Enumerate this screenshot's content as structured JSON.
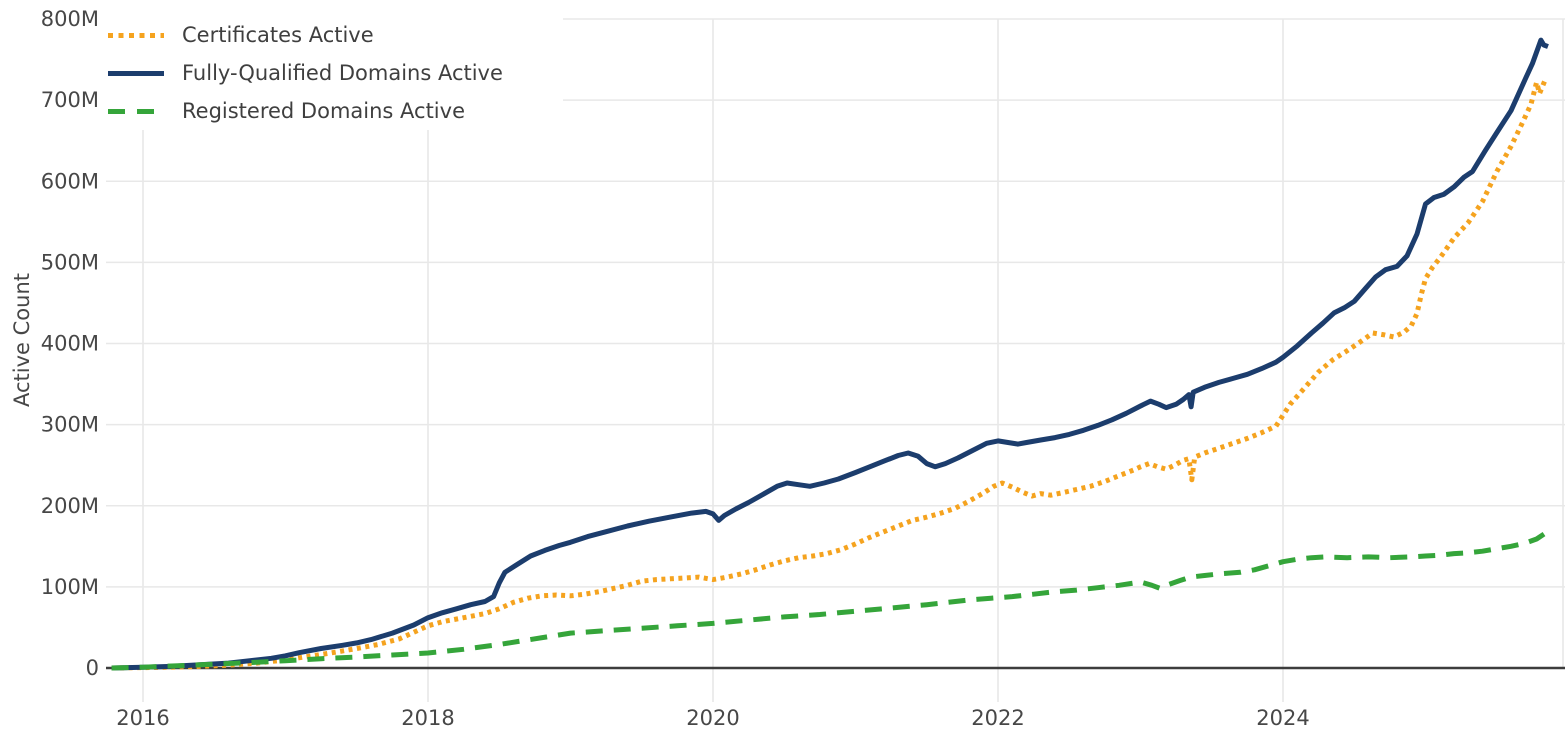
{
  "chart_data": {
    "type": "line",
    "title": "",
    "xlabel": "",
    "ylabel": "Active Count",
    "unit": "millions",
    "grid": true,
    "legend_position": "top-left",
    "x_range_years": [
      2015.76,
      2025.96
    ],
    "ylim": [
      0,
      800
    ],
    "x_tick_labels": [
      "2016",
      "2018",
      "2020",
      "2022",
      "2024"
    ],
    "x_tick_years": [
      2016,
      2018,
      2020,
      2022,
      2024
    ],
    "y_tick_labels": [
      "0",
      "100M",
      "200M",
      "300M",
      "400M",
      "500M",
      "600M",
      "700M",
      "800M"
    ],
    "y_tick_values": [
      0,
      100,
      200,
      300,
      400,
      500,
      600,
      700,
      800
    ],
    "colors": {
      "certificates": "#f5a31f",
      "fqdn": "#1c3d6d",
      "registered": "#35a53a",
      "grid": "#e8e8e8",
      "axis_line": "#3d3d3d",
      "tick_text": "#474747",
      "legend_text": "#3f3f3f"
    },
    "series": [
      {
        "name": "Certificates Active",
        "style": "dotted",
        "color": "#f5a31f",
        "points": [
          [
            2015.78,
            0
          ],
          [
            2016.0,
            0.5
          ],
          [
            2016.2,
            1
          ],
          [
            2016.4,
            2
          ],
          [
            2016.6,
            3.5
          ],
          [
            2016.8,
            6
          ],
          [
            2017.0,
            10
          ],
          [
            2017.15,
            14
          ],
          [
            2017.3,
            18
          ],
          [
            2017.5,
            24
          ],
          [
            2017.65,
            29
          ],
          [
            2017.8,
            36
          ],
          [
            2017.9,
            44
          ],
          [
            2018.0,
            52
          ],
          [
            2018.1,
            57
          ],
          [
            2018.25,
            62
          ],
          [
            2018.4,
            67
          ],
          [
            2018.5,
            73
          ],
          [
            2018.6,
            81
          ],
          [
            2018.7,
            86
          ],
          [
            2018.8,
            89
          ],
          [
            2018.9,
            90
          ],
          [
            2019.0,
            89
          ],
          [
            2019.1,
            91
          ],
          [
            2019.2,
            94
          ],
          [
            2019.3,
            98
          ],
          [
            2019.4,
            102
          ],
          [
            2019.5,
            107
          ],
          [
            2019.6,
            109
          ],
          [
            2019.7,
            110
          ],
          [
            2019.8,
            111
          ],
          [
            2019.9,
            112
          ],
          [
            2020.0,
            109
          ],
          [
            2020.1,
            112
          ],
          [
            2020.2,
            116
          ],
          [
            2020.3,
            121
          ],
          [
            2020.4,
            127
          ],
          [
            2020.5,
            132
          ],
          [
            2020.6,
            136
          ],
          [
            2020.7,
            138
          ],
          [
            2020.8,
            141
          ],
          [
            2020.9,
            146
          ],
          [
            2021.0,
            153
          ],
          [
            2021.1,
            161
          ],
          [
            2021.2,
            168
          ],
          [
            2021.3,
            175
          ],
          [
            2021.4,
            182
          ],
          [
            2021.5,
            186
          ],
          [
            2021.6,
            191
          ],
          [
            2021.7,
            197
          ],
          [
            2021.8,
            206
          ],
          [
            2021.9,
            216
          ],
          [
            2021.97,
            224
          ],
          [
            2022.03,
            228
          ],
          [
            2022.1,
            223
          ],
          [
            2022.17,
            217
          ],
          [
            2022.24,
            212
          ],
          [
            2022.3,
            215
          ],
          [
            2022.37,
            213
          ],
          [
            2022.45,
            216
          ],
          [
            2022.55,
            220
          ],
          [
            2022.65,
            224
          ],
          [
            2022.75,
            230
          ],
          [
            2022.85,
            237
          ],
          [
            2022.95,
            244
          ],
          [
            2023.0,
            248
          ],
          [
            2023.06,
            252
          ],
          [
            2023.12,
            248
          ],
          [
            2023.18,
            245
          ],
          [
            2023.25,
            251
          ],
          [
            2023.3,
            256
          ],
          [
            2023.34,
            258
          ],
          [
            2023.36,
            232
          ],
          [
            2023.38,
            260
          ],
          [
            2023.45,
            265
          ],
          [
            2023.55,
            271
          ],
          [
            2023.65,
            277
          ],
          [
            2023.75,
            283
          ],
          [
            2023.85,
            290
          ],
          [
            2023.95,
            298
          ],
          [
            2024.05,
            325
          ],
          [
            2024.15,
            345
          ],
          [
            2024.25,
            365
          ],
          [
            2024.35,
            380
          ],
          [
            2024.45,
            391
          ],
          [
            2024.55,
            403
          ],
          [
            2024.63,
            413
          ],
          [
            2024.7,
            411
          ],
          [
            2024.78,
            408
          ],
          [
            2024.85,
            414
          ],
          [
            2024.9,
            422
          ],
          [
            2024.94,
            437
          ],
          [
            2024.97,
            460
          ],
          [
            2025.0,
            480
          ],
          [
            2025.05,
            494
          ],
          [
            2025.1,
            505
          ],
          [
            2025.2,
            530
          ],
          [
            2025.3,
            549
          ],
          [
            2025.4,
            575
          ],
          [
            2025.5,
            612
          ],
          [
            2025.6,
            643
          ],
          [
            2025.68,
            672
          ],
          [
            2025.74,
            695
          ],
          [
            2025.78,
            722
          ],
          [
            2025.8,
            708
          ],
          [
            2025.84,
            725
          ]
        ]
      },
      {
        "name": "Fully-Qualified Domains Active",
        "style": "solid",
        "color": "#1c3d6d",
        "points": [
          [
            2015.78,
            0
          ],
          [
            2016.0,
            1
          ],
          [
            2016.2,
            2
          ],
          [
            2016.4,
            4
          ],
          [
            2016.6,
            6
          ],
          [
            2016.75,
            9
          ],
          [
            2016.9,
            12
          ],
          [
            2017.0,
            15
          ],
          [
            2017.1,
            19
          ],
          [
            2017.25,
            24
          ],
          [
            2017.4,
            28
          ],
          [
            2017.5,
            31
          ],
          [
            2017.6,
            35
          ],
          [
            2017.75,
            43
          ],
          [
            2017.9,
            53
          ],
          [
            2018.0,
            62
          ],
          [
            2018.1,
            68
          ],
          [
            2018.2,
            73
          ],
          [
            2018.3,
            78
          ],
          [
            2018.4,
            82
          ],
          [
            2018.46,
            88
          ],
          [
            2018.5,
            105
          ],
          [
            2018.54,
            118
          ],
          [
            2018.62,
            127
          ],
          [
            2018.72,
            138
          ],
          [
            2018.82,
            145
          ],
          [
            2018.92,
            151
          ],
          [
            2019.0,
            155
          ],
          [
            2019.12,
            162
          ],
          [
            2019.25,
            168
          ],
          [
            2019.4,
            175
          ],
          [
            2019.55,
            181
          ],
          [
            2019.7,
            186
          ],
          [
            2019.85,
            191
          ],
          [
            2019.95,
            193
          ],
          [
            2020.0,
            190
          ],
          [
            2020.04,
            182
          ],
          [
            2020.08,
            188
          ],
          [
            2020.16,
            196
          ],
          [
            2020.25,
            204
          ],
          [
            2020.35,
            214
          ],
          [
            2020.45,
            224
          ],
          [
            2020.52,
            228
          ],
          [
            2020.6,
            226
          ],
          [
            2020.68,
            224
          ],
          [
            2020.78,
            228
          ],
          [
            2020.88,
            233
          ],
          [
            2021.0,
            241
          ],
          [
            2021.1,
            248
          ],
          [
            2021.2,
            255
          ],
          [
            2021.3,
            262
          ],
          [
            2021.37,
            265
          ],
          [
            2021.44,
            261
          ],
          [
            2021.5,
            252
          ],
          [
            2021.56,
            248
          ],
          [
            2021.63,
            252
          ],
          [
            2021.72,
            259
          ],
          [
            2021.82,
            268
          ],
          [
            2021.92,
            277
          ],
          [
            2022.0,
            280
          ],
          [
            2022.07,
            278
          ],
          [
            2022.14,
            276
          ],
          [
            2022.2,
            278
          ],
          [
            2022.3,
            281
          ],
          [
            2022.4,
            284
          ],
          [
            2022.5,
            288
          ],
          [
            2022.6,
            293
          ],
          [
            2022.7,
            299
          ],
          [
            2022.8,
            306
          ],
          [
            2022.9,
            314
          ],
          [
            2023.0,
            323
          ],
          [
            2023.07,
            329
          ],
          [
            2023.13,
            325
          ],
          [
            2023.18,
            321
          ],
          [
            2023.25,
            325
          ],
          [
            2023.3,
            331
          ],
          [
            2023.34,
            337
          ],
          [
            2023.355,
            322
          ],
          [
            2023.37,
            340
          ],
          [
            2023.45,
            346
          ],
          [
            2023.55,
            352
          ],
          [
            2023.65,
            357
          ],
          [
            2023.75,
            362
          ],
          [
            2023.85,
            369
          ],
          [
            2023.95,
            377
          ],
          [
            2024.0,
            383
          ],
          [
            2024.1,
            397
          ],
          [
            2024.2,
            413
          ],
          [
            2024.28,
            425
          ],
          [
            2024.36,
            438
          ],
          [
            2024.43,
            444
          ],
          [
            2024.5,
            452
          ],
          [
            2024.58,
            468
          ],
          [
            2024.65,
            482
          ],
          [
            2024.72,
            491
          ],
          [
            2024.8,
            495
          ],
          [
            2024.87,
            508
          ],
          [
            2024.94,
            535
          ],
          [
            2025.0,
            572
          ],
          [
            2025.06,
            580
          ],
          [
            2025.13,
            584
          ],
          [
            2025.2,
            593
          ],
          [
            2025.27,
            605
          ],
          [
            2025.33,
            612
          ],
          [
            2025.42,
            638
          ],
          [
            2025.5,
            660
          ],
          [
            2025.6,
            687
          ],
          [
            2025.7,
            726
          ],
          [
            2025.75,
            745
          ],
          [
            2025.81,
            774
          ],
          [
            2025.83,
            768
          ],
          [
            2025.86,
            766
          ]
        ]
      },
      {
        "name": "Registered Domains Active",
        "style": "dashed",
        "color": "#35a53a",
        "points": [
          [
            2015.78,
            0
          ],
          [
            2016.0,
            1
          ],
          [
            2016.2,
            2.5
          ],
          [
            2016.4,
            4
          ],
          [
            2016.6,
            5.5
          ],
          [
            2016.8,
            7
          ],
          [
            2017.0,
            9
          ],
          [
            2017.25,
            11.5
          ],
          [
            2017.5,
            13.5
          ],
          [
            2017.75,
            16
          ],
          [
            2018.0,
            18.5
          ],
          [
            2018.25,
            23
          ],
          [
            2018.5,
            29
          ],
          [
            2018.75,
            36
          ],
          [
            2019.0,
            43
          ],
          [
            2019.25,
            46
          ],
          [
            2019.5,
            49
          ],
          [
            2019.75,
            52
          ],
          [
            2020.0,
            55
          ],
          [
            2020.25,
            59
          ],
          [
            2020.5,
            63
          ],
          [
            2020.75,
            66
          ],
          [
            2021.0,
            70
          ],
          [
            2021.25,
            74
          ],
          [
            2021.5,
            78
          ],
          [
            2021.65,
            81
          ],
          [
            2021.8,
            84
          ],
          [
            2021.95,
            86
          ],
          [
            2022.1,
            88
          ],
          [
            2022.25,
            91
          ],
          [
            2022.4,
            94
          ],
          [
            2022.55,
            96
          ],
          [
            2022.7,
            99
          ],
          [
            2022.85,
            102
          ],
          [
            2023.0,
            106
          ],
          [
            2023.08,
            102
          ],
          [
            2023.14,
            98
          ],
          [
            2023.2,
            103
          ],
          [
            2023.28,
            108
          ],
          [
            2023.35,
            112
          ],
          [
            2023.45,
            114
          ],
          [
            2023.55,
            116
          ],
          [
            2023.7,
            118
          ],
          [
            2023.8,
            121
          ],
          [
            2023.9,
            126
          ],
          [
            2024.0,
            131
          ],
          [
            2024.1,
            134
          ],
          [
            2024.2,
            136
          ],
          [
            2024.3,
            137
          ],
          [
            2024.45,
            136
          ],
          [
            2024.6,
            137
          ],
          [
            2024.75,
            136
          ],
          [
            2024.9,
            137
          ],
          [
            2025.0,
            138
          ],
          [
            2025.1,
            139
          ],
          [
            2025.2,
            141
          ],
          [
            2025.3,
            142
          ],
          [
            2025.4,
            144
          ],
          [
            2025.5,
            147
          ],
          [
            2025.6,
            150
          ],
          [
            2025.7,
            154
          ],
          [
            2025.78,
            159
          ],
          [
            2025.84,
            166
          ],
          [
            2025.87,
            168
          ]
        ]
      }
    ]
  }
}
